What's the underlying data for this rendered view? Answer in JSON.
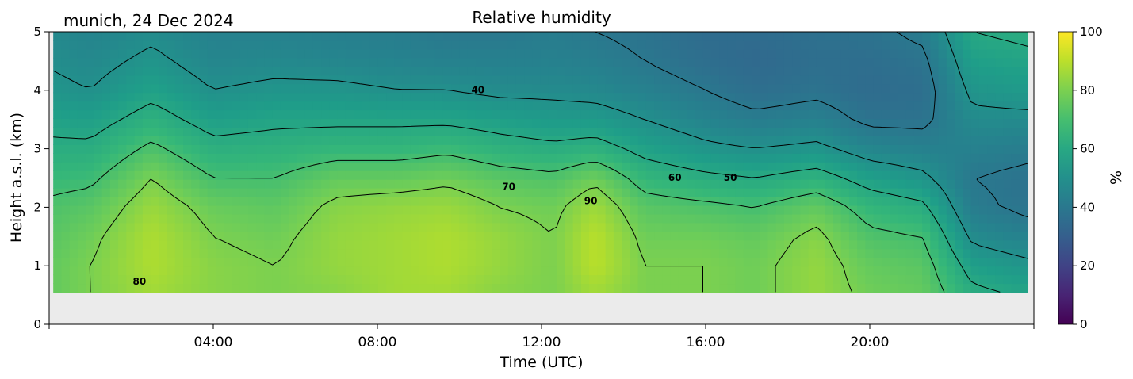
{
  "header": {
    "location_date": "munich, 24 Dec 2024"
  },
  "chart_data": {
    "type": "heatmap",
    "title": "Relative humidity",
    "xlabel": "Time (UTC)",
    "ylabel": "Height a.s.l. (km)",
    "x_unit": "hours UTC",
    "xlim": [
      0,
      24
    ],
    "ylim": [
      0,
      5
    ],
    "x_ticks": [
      4,
      8,
      12,
      16,
      20
    ],
    "x_tick_labels": [
      "04:00",
      "08:00",
      "12:00",
      "16:00",
      "20:00"
    ],
    "y_ticks": [
      0,
      1,
      2,
      3,
      4,
      5
    ],
    "y_tick_labels": [
      "0",
      "1",
      "2",
      "3",
      "4",
      "5"
    ],
    "data_height_range_km": [
      0.55,
      5.0
    ],
    "data_time_range_h": [
      0.1,
      23.85
    ],
    "colormap": "viridis",
    "colorbar": {
      "label": "%",
      "range": [
        0,
        100
      ],
      "ticks": [
        0,
        20,
        40,
        60,
        80,
        100
      ],
      "tick_labels": [
        "0",
        "20",
        "40",
        "60",
        "80",
        "100"
      ]
    },
    "contour_levels": [
      40,
      50,
      60,
      70,
      80,
      90
    ],
    "contour_labels": [
      {
        "text": "40",
        "x": 10.45,
        "y": 3.95
      },
      {
        "text": "50",
        "x": 16.6,
        "y": 2.45
      },
      {
        "text": "60",
        "x": 15.25,
        "y": 2.45
      },
      {
        "text": "70",
        "x": 11.2,
        "y": 2.3
      },
      {
        "text": "80",
        "x": 2.2,
        "y": 0.68
      },
      {
        "text": "90",
        "x": 13.2,
        "y": 2.05
      }
    ],
    "grid": false,
    "legend": "colorbar-right",
    "missing_data_color": "#ebebeb",
    "rh_profile_by_time": [
      {
        "t": 0.1,
        "rh": [
          76,
          76,
          74,
          72,
          67,
          62,
          57,
          52,
          49,
          47
        ]
      },
      {
        "t": 1.0,
        "rh": [
          80,
          80,
          78,
          74,
          68,
          62,
          56,
          50,
          47,
          45
        ]
      },
      {
        "t": 2.5,
        "rh": [
          86,
          88,
          88,
          85,
          80,
          72,
          64,
          57,
          52,
          48
        ]
      },
      {
        "t": 4.0,
        "rh": [
          82,
          82,
          80,
          77,
          70,
          63,
          56,
          50,
          46,
          44
        ]
      },
      {
        "t": 5.5,
        "rh": [
          80,
          80,
          78,
          75,
          70,
          64,
          58,
          52,
          47,
          44
        ]
      },
      {
        "t": 7.0,
        "rh": [
          82,
          84,
          84,
          82,
          76,
          66,
          58,
          52,
          46,
          43
        ]
      },
      {
        "t": 8.5,
        "rh": [
          86,
          86,
          86,
          84,
          76,
          66,
          58,
          50,
          45,
          42
        ]
      },
      {
        "t": 9.7,
        "rh": [
          86,
          88,
          88,
          85,
          78,
          68,
          58,
          50,
          44,
          40
        ]
      },
      {
        "t": 11.0,
        "rh": [
          82,
          84,
          84,
          80,
          74,
          64,
          56,
          48,
          44,
          40
        ]
      },
      {
        "t": 12.3,
        "rh": [
          80,
          80,
          80,
          78,
          72,
          62,
          54,
          48,
          44,
          42
        ]
      },
      {
        "t": 13.3,
        "rh": [
          86,
          90,
          90,
          86,
          78,
          64,
          54,
          47,
          43,
          40
        ]
      },
      {
        "t": 14.5,
        "rh": [
          80,
          80,
          78,
          74,
          66,
          57,
          50,
          44,
          40,
          38
        ]
      },
      {
        "t": 16.0,
        "rh": [
          80,
          80,
          78,
          72,
          62,
          52,
          45,
          40,
          36,
          35
        ]
      },
      {
        "t": 17.2,
        "rh": [
          78,
          78,
          76,
          70,
          60,
          50,
          42,
          36,
          34,
          35
        ]
      },
      {
        "t": 18.7,
        "rh": [
          84,
          84,
          82,
          76,
          64,
          52,
          44,
          38,
          36,
          37
        ]
      },
      {
        "t": 20.0,
        "rh": [
          78,
          76,
          72,
          66,
          56,
          46,
          38,
          35,
          36,
          38
        ]
      },
      {
        "t": 21.3,
        "rh": [
          76,
          74,
          70,
          62,
          52,
          44,
          38,
          36,
          38,
          42
        ]
      },
      {
        "t": 22.5,
        "rh": [
          62,
          56,
          48,
          42,
          40,
          44,
          48,
          52,
          56,
          60
        ]
      },
      {
        "t": 23.85,
        "rh": [
          58,
          52,
          44,
          38,
          38,
          42,
          48,
          54,
          58,
          62
        ]
      }
    ],
    "rh_profile_heights_km": [
      0.55,
      1.0,
      1.5,
      2.0,
      2.5,
      3.0,
      3.5,
      4.0,
      4.5,
      5.0
    ]
  }
}
